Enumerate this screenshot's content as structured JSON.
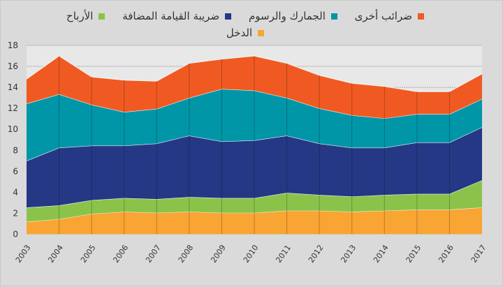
{
  "chart_data": {
    "type": "area",
    "stacked": true,
    "title": "",
    "xlabel": "",
    "ylabel": "",
    "ylim": [
      0,
      18
    ],
    "yticks": [
      0,
      2,
      4,
      6,
      8,
      10,
      12,
      14,
      16,
      18
    ],
    "grid": true,
    "legend_position": "top",
    "categories": [
      "2003",
      "2004",
      "2005",
      "2006",
      "2007",
      "2008",
      "2009",
      "2010",
      "2011",
      "2012",
      "2013",
      "2014",
      "2015",
      "2016",
      "2017"
    ],
    "series": [
      {
        "name": "الدخل",
        "color": "#f9a533",
        "values": [
          1.2,
          1.45,
          1.95,
          2.15,
          2.05,
          2.15,
          2.05,
          2.05,
          2.25,
          2.25,
          2.15,
          2.25,
          2.35,
          2.35,
          2.55
        ]
      },
      {
        "name": "الأرباح",
        "color": "#8bc34a",
        "values": [
          1.35,
          1.3,
          1.3,
          1.3,
          1.3,
          1.4,
          1.4,
          1.4,
          1.7,
          1.5,
          1.45,
          1.5,
          1.5,
          1.5,
          2.6
        ]
      },
      {
        "name": "ضريبة القيامة المضافة",
        "color": "#253885",
        "values": [
          4.45,
          5.5,
          5.2,
          5.0,
          5.3,
          5.85,
          5.4,
          5.5,
          5.45,
          4.9,
          4.65,
          4.5,
          4.9,
          4.9,
          5.05
        ]
      },
      {
        "name": "الجمارك والرسوم",
        "color": "#0096a8",
        "values": [
          5.45,
          5.1,
          3.9,
          3.2,
          3.3,
          3.6,
          5.0,
          4.75,
          3.6,
          3.35,
          3.1,
          2.8,
          2.7,
          2.7,
          2.7
        ]
      },
      {
        "name": "ضرائب أخرى",
        "color": "#f05a22",
        "values": [
          2.35,
          3.65,
          2.65,
          3.05,
          2.65,
          3.3,
          2.85,
          3.3,
          3.3,
          3.15,
          3.05,
          3.05,
          2.15,
          2.15,
          2.4
        ]
      }
    ],
    "legend_order": [
      4,
      3,
      2,
      1,
      0
    ]
  }
}
